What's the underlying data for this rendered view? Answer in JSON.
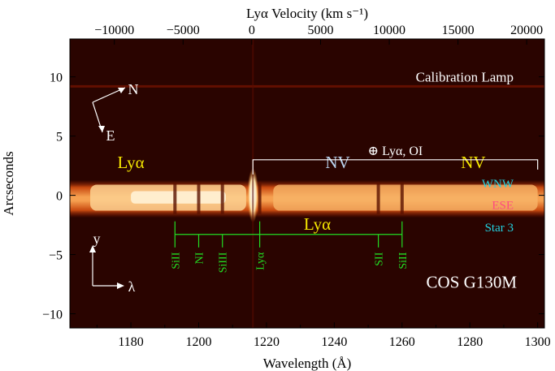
{
  "chart_data": {
    "type": "heatmap",
    "title": "",
    "xlabel": "Wavelength (Å)",
    "ylabel": "Arcseconds",
    "x2label": "Lyα Velocity (km s⁻¹)",
    "xlim": [
      1162,
      1302
    ],
    "ylim": [
      -11.2,
      13.2
    ],
    "xticks": [
      1180,
      1200,
      1220,
      1240,
      1260,
      1280,
      1300
    ],
    "yticks": [
      10,
      5,
      0,
      -5,
      -10
    ],
    "ytick_labels": [
      "10",
      "5",
      "0",
      "−5",
      "−10"
    ],
    "x2ticks": [
      -10000,
      -5000,
      0,
      5000,
      10000,
      15000,
      20000
    ],
    "x2tick_labels": [
      "−10000",
      "−5000",
      "0",
      "5000",
      "10000",
      "15000",
      "20000"
    ],
    "lya_rest_wavelength": 1215.67,
    "spectrum_band": {
      "x_start": 1162,
      "x_end": 1302,
      "y_center": -0.3,
      "half_width": 1.6
    },
    "calibration_lamp_y": 9.2,
    "geocoronal_line": {
      "x": 1216,
      "label": "⊕ Lyα, OI"
    },
    "absorption_lines": [
      {
        "label": "SiII",
        "x": 1193
      },
      {
        "label": "NI",
        "x": 1200
      },
      {
        "label": "SiIII",
        "x": 1207
      },
      {
        "label": "Lyα",
        "x": 1218
      },
      {
        "label": "SII",
        "x": 1253
      },
      {
        "label": "SiII",
        "x": 1260
      }
    ],
    "annotations": {
      "lya_left": "Lyα",
      "nv_mid": "NV",
      "nv_right": "NV",
      "lya_center": "Lyα",
      "calibration": "Calibration Lamp",
      "wnw": "WNW",
      "ese": "ESE",
      "star3": "Star 3",
      "instrument": "COS G130M",
      "compass_n": "N",
      "compass_e": "E",
      "axis_y": "y",
      "axis_lambda": "λ"
    },
    "colors": {
      "background": "#2a0400",
      "band_core": "#fff0c8",
      "band_mid": "#f07a1a",
      "band_edge": "#8a1a00",
      "label_yellow": "#f4e600",
      "label_lightblue": "#b9d3ee",
      "label_cyan": "#22d3e0",
      "label_pink": "#ff4a80",
      "line_green": "#22dd22",
      "white": "#ffffff"
    }
  }
}
